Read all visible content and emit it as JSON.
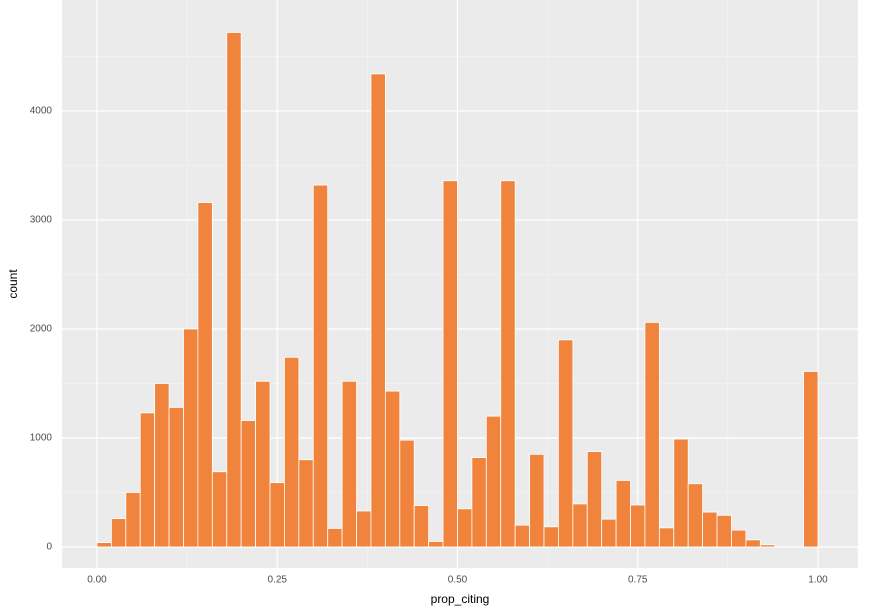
{
  "chart_data": {
    "type": "histogram",
    "x_label": "prop_citing",
    "y_label": "count",
    "bins": [
      0.0,
      0.02,
      0.04,
      0.06,
      0.08,
      0.1,
      0.12,
      0.14,
      0.16,
      0.18,
      0.2,
      0.22,
      0.24,
      0.26,
      0.28,
      0.3,
      0.32,
      0.34,
      0.36,
      0.38,
      0.4,
      0.42,
      0.44,
      0.46,
      0.48,
      0.5,
      0.52,
      0.54,
      0.56,
      0.58,
      0.6,
      0.62,
      0.64,
      0.66,
      0.68,
      0.7,
      0.72,
      0.74,
      0.76,
      0.78,
      0.8,
      0.82,
      0.84,
      0.86,
      0.88,
      0.9,
      0.92,
      0.94,
      0.96,
      0.98,
      1.0
    ],
    "values": [
      40,
      260,
      500,
      1230,
      1500,
      1280,
      2000,
      3160,
      690,
      4720,
      1160,
      1520,
      590,
      1740,
      800,
      3320,
      170,
      1520,
      330,
      4340,
      1430,
      980,
      380,
      50,
      3360,
      350,
      820,
      1200,
      3360,
      200,
      850,
      185,
      1900,
      395,
      875,
      255,
      610,
      385,
      2060,
      175,
      990,
      580,
      320,
      290,
      155,
      65,
      20,
      0,
      0,
      1610
    ],
    "color": "#f0843c",
    "xlim": [
      -0.0485,
      1.0555
    ],
    "xticks": [
      {
        "value": 0,
        "label": "0.00"
      },
      {
        "value": 0.25,
        "label": "0.25"
      },
      {
        "value": 0.5,
        "label": "0.50"
      },
      {
        "value": 0.75,
        "label": "0.75"
      },
      {
        "value": 1,
        "label": "1.00"
      }
    ],
    "ylim": [
      -193,
      5018
    ],
    "yticks": [
      0,
      1000,
      2000,
      3000,
      4000
    ],
    "grid": true
  }
}
